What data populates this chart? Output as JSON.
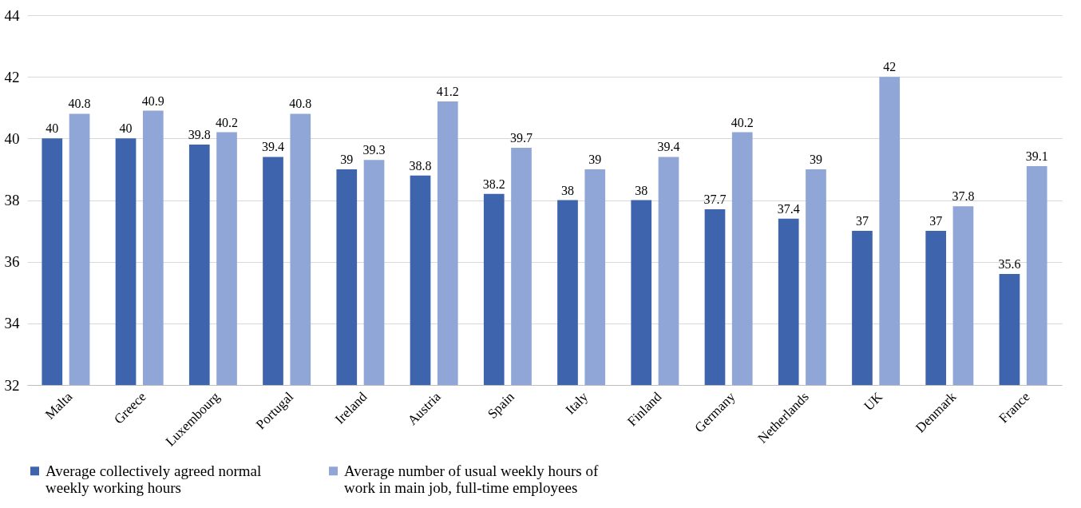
{
  "chart_data": {
    "type": "bar",
    "categories": [
      "Malta",
      "Greece",
      "Luxembourg",
      "Portugal",
      "Ireland",
      "Austria",
      "Spain",
      "Italy",
      "Finland",
      "Germany",
      "Netherlands",
      "UK",
      "Denmark",
      "France"
    ],
    "series": [
      {
        "name": "Average collectively agreed normal weekly working hours",
        "color": "#3d64ad",
        "values": [
          40,
          40,
          39.8,
          39.4,
          39,
          38.8,
          38.2,
          38,
          38,
          37.7,
          37.4,
          37,
          37,
          35.6
        ]
      },
      {
        "name": "Average number of usual weekly hours of work in main job, full-time employees",
        "color": "#8fa6d6",
        "values": [
          40.8,
          40.9,
          40.2,
          40.8,
          39.3,
          41.2,
          39.7,
          39,
          39.4,
          40.2,
          39,
          42,
          37.8,
          39.1
        ]
      }
    ],
    "ylim": [
      32,
      44
    ],
    "yticks": [
      32,
      34,
      36,
      38,
      40,
      42,
      44
    ],
    "grid": "y",
    "legend": "bottom",
    "data_labels": true
  }
}
